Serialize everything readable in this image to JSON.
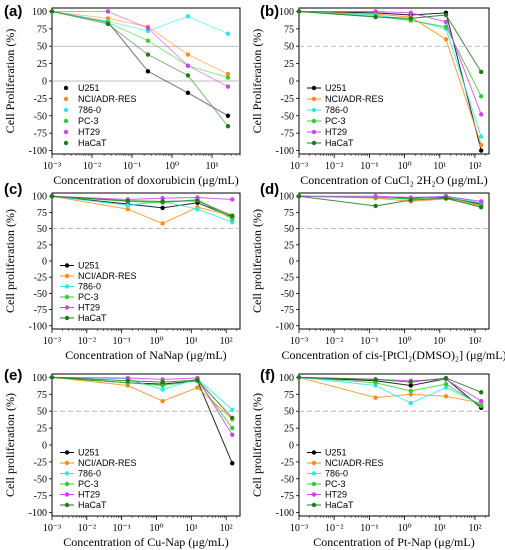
{
  "chart_data": [
    {
      "panel_label": "(a)",
      "type": "line",
      "xscale": "log",
      "xlim": [
        0.001,
        50
      ],
      "xticks": [
        0.001,
        0.01,
        0.1,
        1,
        10
      ],
      "xtick_labels": [
        "10⁻³",
        "10⁻²",
        "10⁻¹",
        "10⁰",
        "10¹"
      ],
      "ylim": [
        -105,
        105
      ],
      "yticks": [
        -100,
        -75,
        -50,
        -25,
        0,
        25,
        50,
        75,
        100
      ],
      "ytick_labels": [
        "-100",
        "-75",
        "-50",
        "-25",
        "0",
        "25",
        "50",
        "75",
        "100"
      ],
      "xlabel": "Concentration of doxorubicin (μg/mL)",
      "ylabel": "Cell Proliferation (%)",
      "reference_line": 50,
      "legend_position": "bottom-left",
      "x": [
        0.001,
        0.025,
        0.25,
        2.5,
        25
      ],
      "series": [
        {
          "name": "U251",
          "color": "#000000",
          "values": [
            100,
            85,
            14,
            -17,
            -50
          ]
        },
        {
          "name": "NCI/ADR-RES",
          "color": "#ff8c1a",
          "values": [
            100,
            90,
            78,
            38,
            10
          ]
        },
        {
          "name": "786-0",
          "color": "#33e6e6",
          "values": [
            100,
            86,
            72,
            93,
            68
          ]
        },
        {
          "name": "PC-3",
          "color": "#33cc33",
          "values": [
            100,
            84,
            58,
            22,
            5
          ]
        },
        {
          "name": "HT29",
          "color": "#cc44ee",
          "values": [
            100,
            100,
            76,
            22,
            -8
          ]
        },
        {
          "name": "HaCaT",
          "color": "#1e7a1e",
          "values": [
            100,
            82,
            38,
            8,
            -65
          ]
        }
      ]
    },
    {
      "panel_label": "(b)",
      "type": "line",
      "xscale": "log",
      "xlim": [
        0.001,
        250
      ],
      "xticks": [
        0.001,
        0.01,
        0.1,
        1,
        10,
        100
      ],
      "xtick_labels": [
        "10⁻³",
        "10⁻²",
        "10⁻¹",
        "10⁰",
        "10¹",
        "10²"
      ],
      "ylim": [
        -105,
        105
      ],
      "yticks": [
        -100,
        -75,
        -50,
        -25,
        0,
        25,
        50,
        75,
        100
      ],
      "ytick_labels": [
        "-100",
        "-75",
        "-50",
        "-25",
        "0",
        "25",
        "50",
        "75",
        "100"
      ],
      "xlabel": "Concentration of CuCl₂ 2H₂O (μg/mL)",
      "ylabel": "Cell Proliferation (%)",
      "reference_line": 50,
      "legend_position": "bottom-left",
      "x": [
        0.001,
        0.15,
        1.5,
        15,
        150
      ],
      "series": [
        {
          "name": "U251",
          "color": "#000000",
          "values": [
            100,
            98,
            95,
            98,
            -100
          ]
        },
        {
          "name": "NCI/ADR-RES",
          "color": "#ff8c1a",
          "values": [
            100,
            96,
            92,
            60,
            -92
          ]
        },
        {
          "name": "786-0",
          "color": "#33e6e6",
          "values": [
            100,
            95,
            88,
            75,
            -80
          ]
        },
        {
          "name": "PC-3",
          "color": "#33cc33",
          "values": [
            100,
            93,
            87,
            78,
            -22
          ]
        },
        {
          "name": "HT29",
          "color": "#cc44ee",
          "values": [
            100,
            100,
            98,
            85,
            -48
          ]
        },
        {
          "name": "HaCaT",
          "color": "#1e7a1e",
          "values": [
            100,
            92,
            90,
            95,
            13
          ]
        }
      ]
    },
    {
      "panel_label": "(c)",
      "type": "line",
      "xscale": "log",
      "xlim": [
        0.001,
        250
      ],
      "xticks": [
        0.001,
        0.01,
        0.1,
        1,
        10,
        100
      ],
      "xtick_labels": [
        "10⁻³",
        "10⁻²",
        "10⁻¹",
        "10⁰",
        "10¹",
        "10²"
      ],
      "ylim": [
        -105,
        105
      ],
      "yticks": [
        -100,
        -75,
        -50,
        -25,
        0,
        25,
        50,
        75,
        100
      ],
      "ytick_labels": [
        "-100",
        "-75",
        "-50",
        "-25",
        "0",
        "25",
        "50",
        "75",
        "100"
      ],
      "xlabel": "Concentration of NaNap (μg/mL)",
      "ylabel": "Cell proliferation (%)",
      "reference_line": 50,
      "legend_position": "bottom-left",
      "x": [
        0.001,
        0.15,
        1.5,
        15,
        150
      ],
      "series": [
        {
          "name": "U251",
          "color": "#000000",
          "values": [
            100,
            88,
            82,
            90,
            68
          ]
        },
        {
          "name": "NCI/ADR-RES",
          "color": "#ff8c1a",
          "values": [
            100,
            80,
            58,
            83,
            70
          ]
        },
        {
          "name": "786-0",
          "color": "#33e6e6",
          "values": [
            100,
            86,
            92,
            80,
            60
          ]
        },
        {
          "name": "PC-3",
          "color": "#33cc33",
          "values": [
            100,
            92,
            90,
            95,
            65
          ]
        },
        {
          "name": "HT29",
          "color": "#cc44ee",
          "values": [
            100,
            95,
            97,
            98,
            95
          ]
        },
        {
          "name": "HaCaT",
          "color": "#1e7a1e",
          "values": [
            100,
            93,
            92,
            93,
            70
          ]
        }
      ]
    },
    {
      "panel_label": "(d)",
      "type": "line",
      "xscale": "log",
      "xlim": [
        0.001,
        250
      ],
      "xticks": [
        0.001,
        0.01,
        0.1,
        1,
        10,
        100
      ],
      "xtick_labels": [
        "10⁻³",
        "10⁻²",
        "10⁻¹",
        "10⁰",
        "10¹",
        "10²"
      ],
      "ylim": [
        -105,
        105
      ],
      "yticks": [
        -100,
        -75,
        -50,
        -25,
        0,
        25,
        50,
        75,
        100
      ],
      "ytick_labels": [
        "-100",
        "-75",
        "-50",
        "-25",
        "0",
        "25",
        "50",
        "75",
        "100"
      ],
      "xlabel": "Concentration of cis-[PtCl₂(DMSO)₂] (μg/mL)",
      "ylabel": "Cell proliferation (%)",
      "reference_line": 50,
      "legend_position": null,
      "x": [
        0.001,
        0.15,
        1.5,
        15,
        150
      ],
      "series": [
        {
          "name": "U251",
          "color": "#000000",
          "values": [
            100,
            98,
            97,
            98,
            88
          ]
        },
        {
          "name": "NCI/ADR-RES",
          "color": "#ff8c1a",
          "values": [
            100,
            97,
            92,
            96,
            85
          ]
        },
        {
          "name": "786-0",
          "color": "#33e6e6",
          "values": [
            100,
            99,
            95,
            100,
            90
          ]
        },
        {
          "name": "PC-3",
          "color": "#33cc33",
          "values": [
            100,
            98,
            96,
            99,
            86
          ]
        },
        {
          "name": "HT29",
          "color": "#cc44ee",
          "values": [
            100,
            100,
            98,
            100,
            92
          ]
        },
        {
          "name": "HaCaT",
          "color": "#1e7a1e",
          "values": [
            100,
            85,
            94,
            97,
            83
          ]
        }
      ]
    },
    {
      "panel_label": "(e)",
      "type": "line",
      "xscale": "log",
      "xlim": [
        0.001,
        250
      ],
      "xticks": [
        0.001,
        0.01,
        0.1,
        1,
        10,
        100
      ],
      "xtick_labels": [
        "10⁻³",
        "10⁻²",
        "10⁻¹",
        "10⁰",
        "10¹",
        "10²"
      ],
      "ylim": [
        -105,
        105
      ],
      "yticks": [
        -100,
        -75,
        -50,
        -25,
        0,
        25,
        50,
        75,
        100
      ],
      "ytick_labels": [
        "-100",
        "-75",
        "-50",
        "-25",
        "0",
        "25",
        "50",
        "75",
        "100"
      ],
      "xlabel": "Concentration of Cu-Nap (μg/mL)",
      "ylabel": "Cell proliferation (%)",
      "reference_line": 50,
      "legend_position": "bottom-left",
      "x": [
        0.001,
        0.15,
        1.5,
        15,
        150
      ],
      "series": [
        {
          "name": "U251",
          "color": "#000000",
          "values": [
            100,
            92,
            90,
            95,
            -27
          ]
        },
        {
          "name": "NCI/ADR-RES",
          "color": "#ff8c1a",
          "values": [
            100,
            88,
            65,
            85,
            38
          ]
        },
        {
          "name": "786-0",
          "color": "#33e6e6",
          "values": [
            100,
            98,
            82,
            98,
            52
          ]
        },
        {
          "name": "PC-3",
          "color": "#33cc33",
          "values": [
            100,
            92,
            88,
            95,
            25
          ]
        },
        {
          "name": "HT29",
          "color": "#cc44ee",
          "values": [
            100,
            99,
            97,
            99,
            15
          ]
        },
        {
          "name": "HaCaT",
          "color": "#1e7a1e",
          "values": [
            100,
            95,
            93,
            96,
            40
          ]
        }
      ]
    },
    {
      "panel_label": "(f)",
      "type": "line",
      "xscale": "log",
      "xlim": [
        0.001,
        250
      ],
      "xticks": [
        0.001,
        0.01,
        0.1,
        1,
        10,
        100
      ],
      "xtick_labels": [
        "10⁻³",
        "10⁻²",
        "10⁻¹",
        "10⁰",
        "10¹",
        "10²"
      ],
      "ylim": [
        -105,
        105
      ],
      "yticks": [
        -100,
        -75,
        -50,
        -25,
        0,
        25,
        50,
        75,
        100
      ],
      "ytick_labels": [
        "-100",
        "-75",
        "-50",
        "-25",
        "0",
        "25",
        "50",
        "75",
        "100"
      ],
      "xlabel": "Concentration of Pt-Nap (μg/mL)",
      "ylabel": "Cell proliferation (%)",
      "reference_line": 50,
      "legend_position": "bottom-left",
      "x": [
        0.001,
        0.15,
        1.5,
        15,
        150
      ],
      "series": [
        {
          "name": "U251",
          "color": "#000000",
          "values": [
            100,
            95,
            88,
            98,
            55
          ]
        },
        {
          "name": "NCI/ADR-RES",
          "color": "#ff8c1a",
          "values": [
            100,
            70,
            75,
            72,
            62
          ]
        },
        {
          "name": "786-0",
          "color": "#33e6e6",
          "values": [
            100,
            88,
            62,
            85,
            60
          ]
        },
        {
          "name": "PC-3",
          "color": "#33cc33",
          "values": [
            100,
            92,
            80,
            90,
            58
          ]
        },
        {
          "name": "HT29",
          "color": "#cc44ee",
          "values": [
            100,
            97,
            95,
            97,
            65
          ]
        },
        {
          "name": "HaCaT",
          "color": "#1e7a1e",
          "values": [
            100,
            97,
            93,
            99,
            78
          ]
        }
      ]
    }
  ]
}
